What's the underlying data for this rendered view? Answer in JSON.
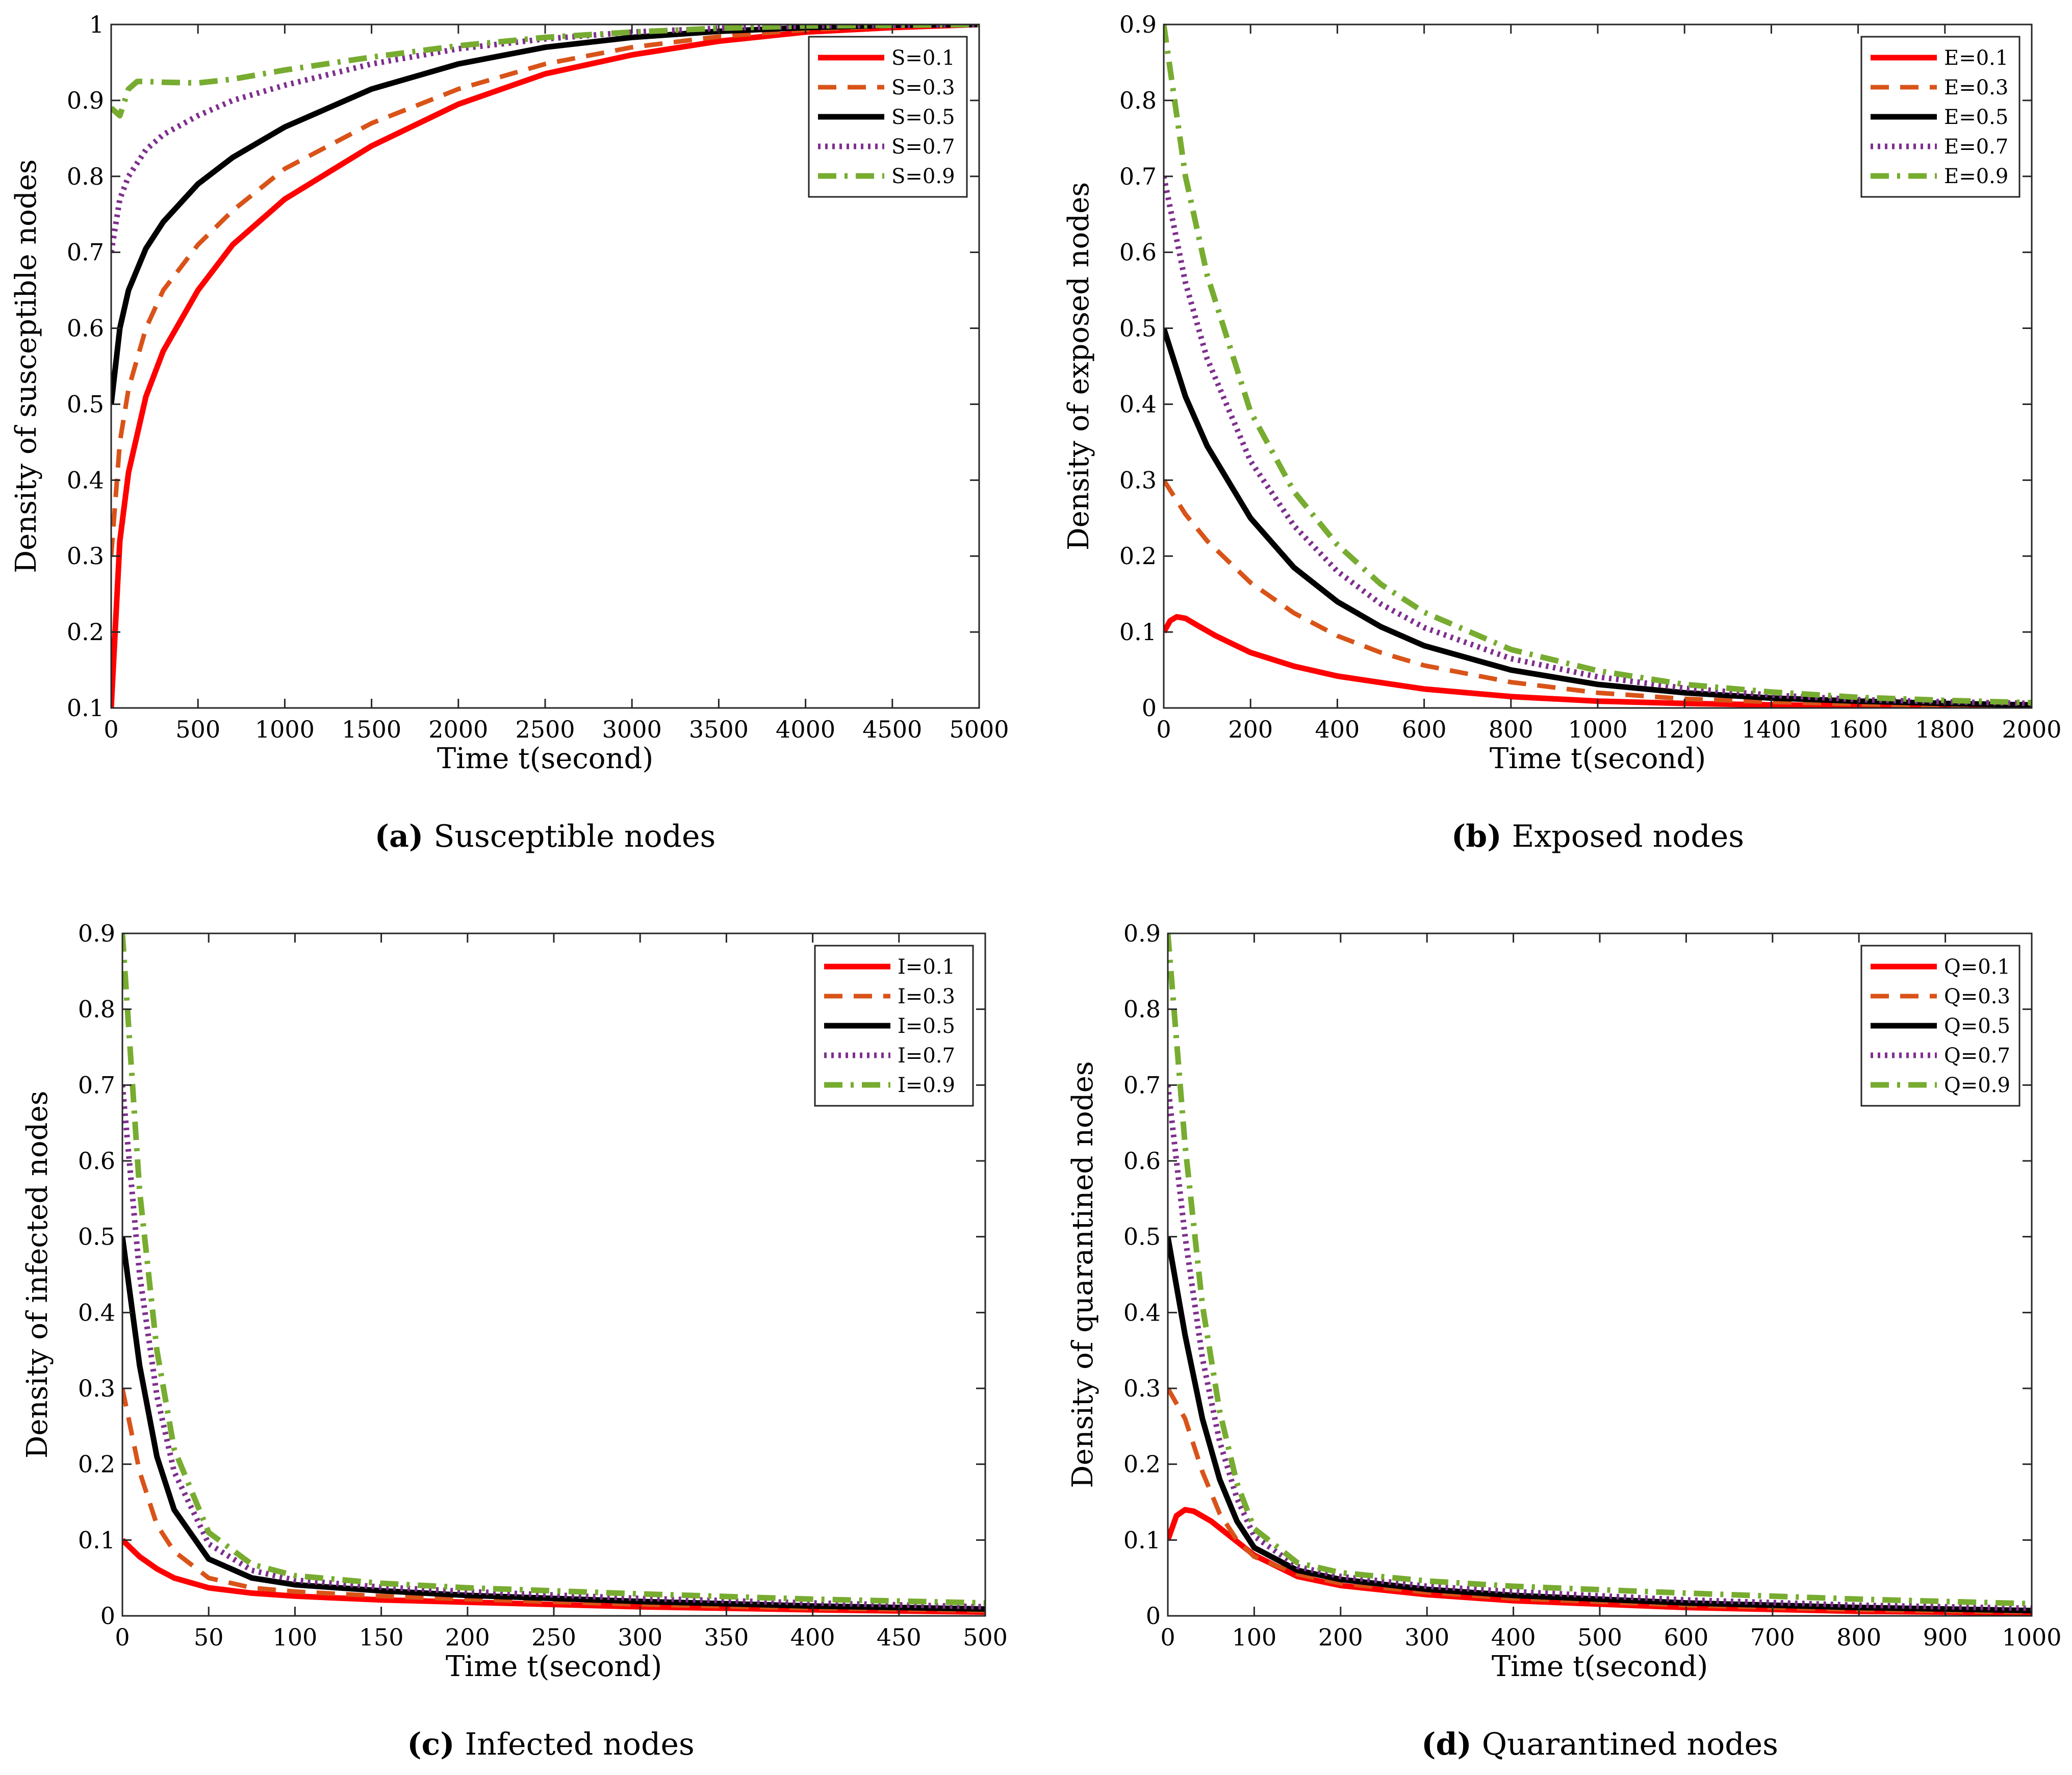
{
  "colors": {
    "red": "#ff0000",
    "orange": "#d95319",
    "black": "#000000",
    "purple": "#7e2f8e",
    "green": "#77ac30"
  },
  "chart_data": [
    {
      "type": "line",
      "panel": "a",
      "caption_letter": "(a)",
      "caption_text": "Susceptible nodes",
      "xlabel": "Time t(second)",
      "ylabel": "Density of susceptible nodes",
      "xlim": [
        0,
        5000
      ],
      "ylim": [
        0.1,
        1
      ],
      "xticks": [
        0,
        500,
        1000,
        1500,
        2000,
        2500,
        3000,
        3500,
        4000,
        4500,
        5000
      ],
      "xtick_labels": [
        "0",
        "500",
        "1000",
        "1500",
        "2000",
        "2500",
        "3000",
        "3500",
        "4000",
        "4500",
        "5000"
      ],
      "yticks": [
        0.1,
        0.2,
        0.3,
        0.4,
        0.5,
        0.6,
        0.7,
        0.8,
        0.9,
        1
      ],
      "ytick_labels": [
        "0.1",
        "0.2",
        "0.3",
        "0.4",
        "0.5",
        "0.6",
        "0.7",
        "0.8",
        "0.9",
        "1"
      ],
      "legend_position": "top-right",
      "series": [
        {
          "name": "S=0.1",
          "color": "#ff0000",
          "style": "solid",
          "x": [
            0,
            50,
            100,
            200,
            300,
            500,
            700,
            1000,
            1500,
            2000,
            2500,
            3000,
            3500,
            4000,
            4500,
            5000
          ],
          "y": [
            0.1,
            0.32,
            0.41,
            0.51,
            0.57,
            0.65,
            0.71,
            0.77,
            0.84,
            0.895,
            0.935,
            0.96,
            0.978,
            0.99,
            0.996,
            1.0
          ]
        },
        {
          "name": "S=0.3",
          "color": "#d95319",
          "style": "dashed",
          "x": [
            0,
            50,
            100,
            200,
            300,
            500,
            700,
            1000,
            1500,
            2000,
            2500,
            3000,
            3500,
            4000,
            4500,
            5000
          ],
          "y": [
            0.3,
            0.45,
            0.52,
            0.6,
            0.65,
            0.71,
            0.755,
            0.81,
            0.87,
            0.915,
            0.948,
            0.97,
            0.984,
            0.993,
            0.998,
            1.0
          ]
        },
        {
          "name": "S=0.5",
          "color": "#000000",
          "style": "solid",
          "x": [
            0,
            50,
            100,
            200,
            300,
            500,
            700,
            1000,
            1500,
            2000,
            2500,
            3000,
            3500,
            4000,
            4500,
            5000
          ],
          "y": [
            0.5,
            0.6,
            0.65,
            0.705,
            0.74,
            0.79,
            0.825,
            0.865,
            0.915,
            0.948,
            0.97,
            0.983,
            0.991,
            0.996,
            0.999,
            1.0
          ]
        },
        {
          "name": "S=0.7",
          "color": "#7e2f8e",
          "style": "dotted",
          "x": [
            0,
            50,
            100,
            200,
            300,
            500,
            700,
            1000,
            1500,
            2000,
            2500,
            3000,
            3500,
            4000,
            4500,
            5000
          ],
          "y": [
            0.7,
            0.77,
            0.8,
            0.835,
            0.855,
            0.88,
            0.9,
            0.92,
            0.948,
            0.968,
            0.981,
            0.99,
            0.995,
            0.998,
            0.999,
            1.0
          ]
        },
        {
          "name": "S=0.9",
          "color": "#77ac30",
          "style": "dashdot",
          "x": [
            0,
            50,
            100,
            150,
            200,
            300,
            500,
            700,
            1000,
            1500,
            2000,
            2500,
            3000,
            3500,
            4000,
            4500,
            5000
          ],
          "y": [
            0.89,
            0.88,
            0.915,
            0.925,
            0.925,
            0.924,
            0.923,
            0.928,
            0.94,
            0.957,
            0.972,
            0.983,
            0.99,
            0.995,
            0.998,
            0.999,
            1.0
          ]
        }
      ]
    },
    {
      "type": "line",
      "panel": "b",
      "caption_letter": "(b)",
      "caption_text": "Exposed nodes",
      "xlabel": "Time t(second)",
      "ylabel": "Density of exposed nodes",
      "xlim": [
        0,
        2000
      ],
      "ylim": [
        0,
        0.9
      ],
      "xticks": [
        0,
        200,
        400,
        600,
        800,
        1000,
        1200,
        1400,
        1600,
        1800,
        2000
      ],
      "xtick_labels": [
        "0",
        "200",
        "400",
        "600",
        "800",
        "1000",
        "1200",
        "1400",
        "1600",
        "1800",
        "2000"
      ],
      "yticks": [
        0,
        0.1,
        0.2,
        0.3,
        0.4,
        0.5,
        0.6,
        0.7,
        0.8,
        0.9
      ],
      "ytick_labels": [
        "0",
        "0.1",
        "0.2",
        "0.3",
        "0.4",
        "0.5",
        "0.6",
        "0.7",
        "0.8",
        "0.9"
      ],
      "legend_position": "top-right",
      "series": [
        {
          "name": "E=0.1",
          "color": "#ff0000",
          "style": "solid",
          "x": [
            0,
            15,
            30,
            50,
            80,
            120,
            200,
            300,
            400,
            600,
            800,
            1000,
            1200,
            1400,
            1600,
            1800,
            2000
          ],
          "y": [
            0.1,
            0.115,
            0.12,
            0.118,
            0.108,
            0.095,
            0.073,
            0.055,
            0.042,
            0.025,
            0.015,
            0.009,
            0.006,
            0.004,
            0.003,
            0.002,
            0.002
          ]
        },
        {
          "name": "E=0.3",
          "color": "#d95319",
          "style": "dashed",
          "x": [
            0,
            50,
            100,
            200,
            300,
            400,
            500,
            600,
            800,
            1000,
            1200,
            1400,
            1600,
            1800,
            2000
          ],
          "y": [
            0.3,
            0.255,
            0.22,
            0.165,
            0.125,
            0.095,
            0.073,
            0.056,
            0.034,
            0.02,
            0.012,
            0.008,
            0.005,
            0.003,
            0.002
          ]
        },
        {
          "name": "E=0.5",
          "color": "#000000",
          "style": "solid",
          "x": [
            0,
            50,
            100,
            200,
            300,
            400,
            500,
            600,
            800,
            1000,
            1200,
            1400,
            1600,
            1800,
            2000
          ],
          "y": [
            0.5,
            0.41,
            0.345,
            0.25,
            0.185,
            0.14,
            0.107,
            0.082,
            0.05,
            0.031,
            0.02,
            0.013,
            0.009,
            0.006,
            0.004
          ]
        },
        {
          "name": "E=0.7",
          "color": "#7e2f8e",
          "style": "dotted",
          "x": [
            0,
            50,
            100,
            200,
            300,
            400,
            500,
            600,
            800,
            1000,
            1200,
            1400,
            1600,
            1800,
            2000
          ],
          "y": [
            0.7,
            0.56,
            0.46,
            0.325,
            0.24,
            0.18,
            0.137,
            0.106,
            0.065,
            0.041,
            0.026,
            0.017,
            0.011,
            0.008,
            0.006
          ]
        },
        {
          "name": "E=0.9",
          "color": "#77ac30",
          "style": "dashdot",
          "x": [
            0,
            50,
            100,
            200,
            300,
            400,
            500,
            600,
            800,
            1000,
            1200,
            1400,
            1600,
            1800,
            2000
          ],
          "y": [
            0.9,
            0.7,
            0.57,
            0.39,
            0.285,
            0.215,
            0.163,
            0.126,
            0.077,
            0.049,
            0.031,
            0.021,
            0.014,
            0.01,
            0.007
          ]
        }
      ]
    },
    {
      "type": "line",
      "panel": "c",
      "caption_letter": "(c)",
      "caption_text": "Infected nodes",
      "xlabel": "Time t(second)",
      "ylabel": "Density of infected nodes",
      "xlim": [
        0,
        500
      ],
      "ylim": [
        0,
        0.9
      ],
      "xticks": [
        0,
        50,
        100,
        150,
        200,
        250,
        300,
        350,
        400,
        450,
        500
      ],
      "xtick_labels": [
        "0",
        "50",
        "100",
        "150",
        "200",
        "250",
        "300",
        "350",
        "400",
        "450",
        "500"
      ],
      "yticks": [
        0,
        0.1,
        0.2,
        0.3,
        0.4,
        0.5,
        0.6,
        0.7,
        0.8,
        0.9
      ],
      "ytick_labels": [
        "0",
        "0.1",
        "0.2",
        "0.3",
        "0.4",
        "0.5",
        "0.6",
        "0.7",
        "0.8",
        "0.9"
      ],
      "legend_position": "top-right",
      "series": [
        {
          "name": "I=0.1",
          "color": "#ff0000",
          "style": "solid",
          "x": [
            0,
            10,
            20,
            30,
            50,
            75,
            100,
            150,
            200,
            300,
            400,
            500
          ],
          "y": [
            0.1,
            0.078,
            0.062,
            0.05,
            0.037,
            0.03,
            0.026,
            0.021,
            0.018,
            0.012,
            0.008,
            0.005
          ]
        },
        {
          "name": "I=0.3",
          "color": "#d95319",
          "style": "dashed",
          "x": [
            0,
            10,
            20,
            30,
            50,
            75,
            100,
            150,
            200,
            300,
            400,
            500
          ],
          "y": [
            0.3,
            0.19,
            0.12,
            0.085,
            0.05,
            0.037,
            0.032,
            0.026,
            0.022,
            0.015,
            0.01,
            0.007
          ]
        },
        {
          "name": "I=0.5",
          "color": "#000000",
          "style": "solid",
          "x": [
            0,
            10,
            20,
            30,
            50,
            75,
            100,
            150,
            200,
            300,
            400,
            500
          ],
          "y": [
            0.5,
            0.33,
            0.21,
            0.14,
            0.075,
            0.05,
            0.041,
            0.033,
            0.027,
            0.019,
            0.013,
            0.009
          ]
        },
        {
          "name": "I=0.7",
          "color": "#7e2f8e",
          "style": "dotted",
          "x": [
            0,
            10,
            20,
            30,
            50,
            75,
            100,
            150,
            200,
            300,
            400,
            500
          ],
          "y": [
            0.7,
            0.45,
            0.29,
            0.19,
            0.095,
            0.06,
            0.047,
            0.038,
            0.032,
            0.023,
            0.017,
            0.012
          ]
        },
        {
          "name": "I=0.9",
          "color": "#77ac30",
          "style": "dashdot",
          "x": [
            0,
            10,
            20,
            30,
            50,
            75,
            100,
            150,
            200,
            300,
            400,
            500
          ],
          "y": [
            0.9,
            0.56,
            0.35,
            0.22,
            0.11,
            0.068,
            0.053,
            0.043,
            0.037,
            0.029,
            0.022,
            0.017
          ]
        }
      ]
    },
    {
      "type": "line",
      "panel": "d",
      "caption_letter": "(d)",
      "caption_text": "Quarantined nodes",
      "xlabel": "Time t(second)",
      "ylabel": "Density of quarantined nodes",
      "xlim": [
        0,
        1000
      ],
      "ylim": [
        0,
        0.9
      ],
      "xticks": [
        0,
        100,
        200,
        300,
        400,
        500,
        600,
        700,
        800,
        900,
        1000
      ],
      "xtick_labels": [
        "0",
        "100",
        "200",
        "300",
        "400",
        "500",
        "600",
        "700",
        "800",
        "900",
        "1000"
      ],
      "yticks": [
        0,
        0.1,
        0.2,
        0.3,
        0.4,
        0.5,
        0.6,
        0.7,
        0.8,
        0.9
      ],
      "ytick_labels": [
        "0",
        "0.1",
        "0.2",
        "0.3",
        "0.4",
        "0.5",
        "0.6",
        "0.7",
        "0.8",
        "0.9"
      ],
      "legend_position": "top-right",
      "series": [
        {
          "name": "Q=0.1",
          "color": "#ff0000",
          "style": "solid",
          "x": [
            0,
            10,
            20,
            30,
            50,
            80,
            100,
            150,
            200,
            300,
            400,
            600,
            800,
            1000
          ],
          "y": [
            0.1,
            0.132,
            0.14,
            0.138,
            0.125,
            0.098,
            0.08,
            0.052,
            0.04,
            0.028,
            0.02,
            0.011,
            0.006,
            0.004
          ]
        },
        {
          "name": "Q=0.3",
          "color": "#d95319",
          "style": "dashed",
          "x": [
            0,
            20,
            40,
            60,
            80,
            100,
            150,
            200,
            300,
            400,
            600,
            800,
            1000
          ],
          "y": [
            0.3,
            0.26,
            0.19,
            0.135,
            0.1,
            0.078,
            0.055,
            0.043,
            0.031,
            0.023,
            0.014,
            0.008,
            0.005
          ]
        },
        {
          "name": "Q=0.5",
          "color": "#000000",
          "style": "solid",
          "x": [
            0,
            20,
            40,
            60,
            80,
            100,
            150,
            200,
            300,
            400,
            600,
            800,
            1000
          ],
          "y": [
            0.5,
            0.37,
            0.26,
            0.18,
            0.125,
            0.09,
            0.06,
            0.048,
            0.035,
            0.027,
            0.017,
            0.011,
            0.007
          ]
        },
        {
          "name": "Q=0.7",
          "color": "#7e2f8e",
          "style": "dotted",
          "x": [
            0,
            20,
            40,
            60,
            80,
            100,
            150,
            200,
            300,
            400,
            600,
            800,
            1000
          ],
          "y": [
            0.7,
            0.5,
            0.34,
            0.23,
            0.155,
            0.105,
            0.065,
            0.052,
            0.039,
            0.032,
            0.021,
            0.014,
            0.01
          ]
        },
        {
          "name": "Q=0.9",
          "color": "#77ac30",
          "style": "dashdot",
          "x": [
            0,
            20,
            40,
            60,
            80,
            100,
            150,
            200,
            300,
            400,
            600,
            800,
            1000
          ],
          "y": [
            0.9,
            0.62,
            0.41,
            0.27,
            0.175,
            0.115,
            0.07,
            0.057,
            0.046,
            0.039,
            0.03,
            0.022,
            0.016
          ]
        }
      ]
    }
  ]
}
